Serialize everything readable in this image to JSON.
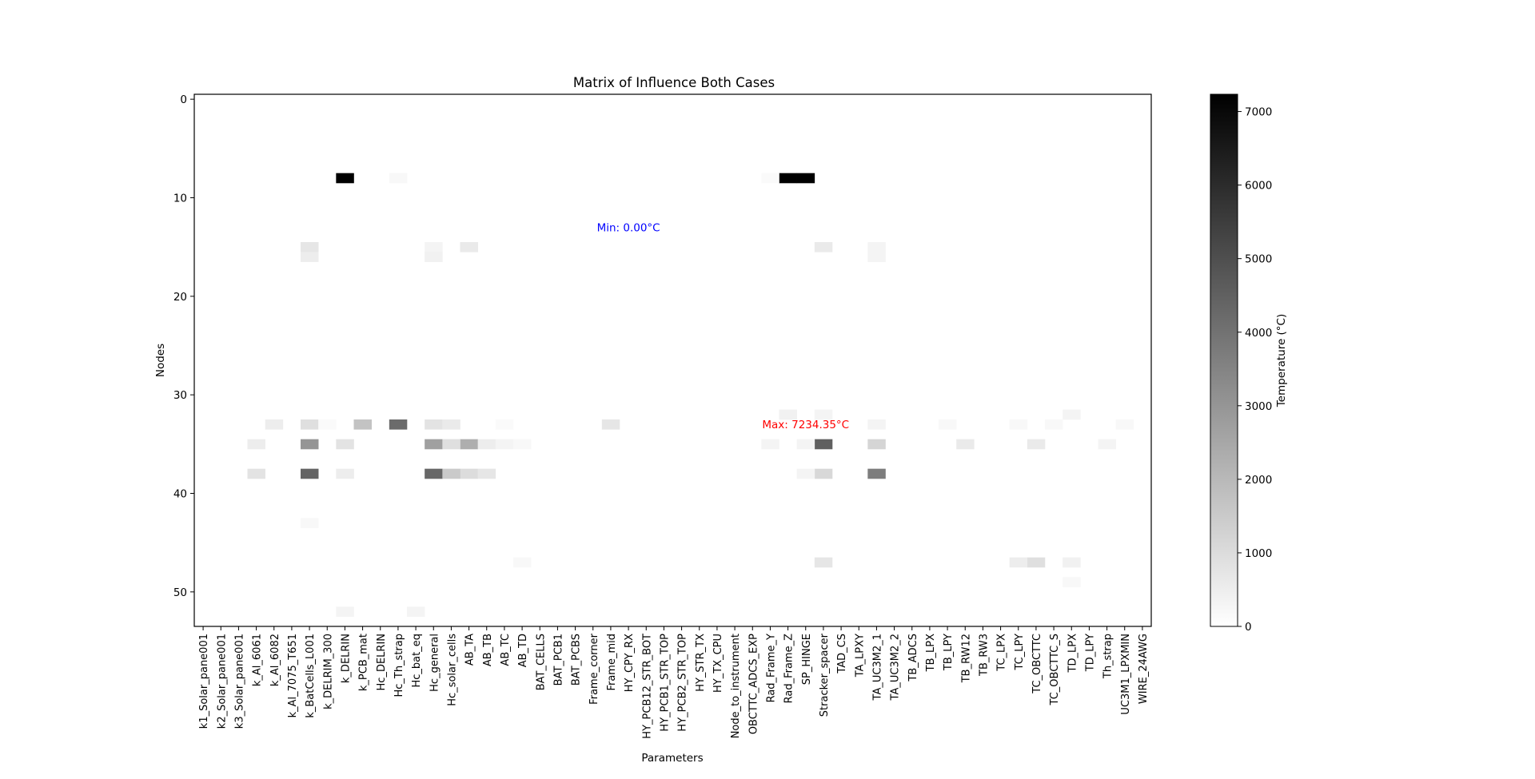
{
  "chart_data": {
    "type": "heatmap",
    "title": "Matrix of Influence Both Cases",
    "xlabel": "Parameters",
    "ylabel": "Nodes",
    "colorbar_label": "Temperature (°C)",
    "colormap": "Greys",
    "color_range": [
      0,
      7234.35
    ],
    "colorbar_ticks": [
      0,
      1000,
      2000,
      3000,
      4000,
      5000,
      6000,
      7000
    ],
    "y_range": [
      0,
      53
    ],
    "y_ticks": [
      0,
      10,
      20,
      30,
      40,
      50
    ],
    "x_tick_labels": [
      "k1_Solar_pane001",
      "k2_Solar_pane001",
      "k3_Solar_pane001",
      "k_Al_6061",
      "k_Al_6082",
      "k_Al_7075_T651",
      "k_BatCells_L001",
      "k_DELRIM_300",
      "k_DELRIN",
      "k_PCB_mat",
      "Hc_DELRIN",
      "Hc_Th_strap",
      "Hc_bat_eq",
      "Hc_general",
      "Hc_solar_cells",
      "AB_TA",
      "AB_TB",
      "AB_TC",
      "AB_TD",
      "BAT_CELLS",
      "BAT_PCB1",
      "BAT_PCBS",
      "Frame_corner",
      "Frame_mid",
      "HY_CPY_RX",
      "HY_PCB12_STR_BOT",
      "HY_PCB1_STR_TOP",
      "HY_PCB2_STR_TOP",
      "HY_STR_TX",
      "HY_TX_CPU",
      "Node_to_instrument",
      "OBCTTC_ADCS_EXP",
      "Rad_Frame_Y",
      "Rad_Frame_Z",
      "SP_HINGE",
      "Stracker_spacer",
      "TAD_CS",
      "TA_LPXY",
      "TA_UC3M2_1",
      "TA_UC3M2_2",
      "TB_ADCS",
      "TB_LPX",
      "TB_LPY",
      "TB_RW12",
      "TB_RW3",
      "TC_LPX",
      "TC_LPY",
      "TC_OBCTTC",
      "TC_OBCTTC_S",
      "TD_LPX",
      "TD_LPY",
      "Th_strap",
      "UC3M1_LPXMIN",
      "WIRE_24AWG"
    ],
    "cells": [
      [
        8,
        8,
        7234.35
      ],
      [
        33,
        8,
        7234.35
      ],
      [
        34,
        8,
        7234.35
      ],
      [
        11,
        33,
        4200
      ],
      [
        6,
        38,
        4400
      ],
      [
        13,
        38,
        4300
      ],
      [
        35,
        35,
        4500
      ],
      [
        38,
        38,
        3700
      ],
      [
        6,
        35,
        3000
      ],
      [
        13,
        35,
        2700
      ],
      [
        15,
        35,
        2300
      ],
      [
        9,
        33,
        1700
      ],
      [
        35,
        38,
        1100
      ],
      [
        38,
        35,
        1200
      ],
      [
        8,
        35,
        800
      ],
      [
        6,
        33,
        900
      ],
      [
        13,
        33,
        800
      ],
      [
        14,
        33,
        600
      ],
      [
        15,
        38,
        1000
      ],
      [
        14,
        35,
        900
      ],
      [
        14,
        38,
        1500
      ],
      [
        16,
        38,
        700
      ],
      [
        3,
        38,
        800
      ],
      [
        4,
        33,
        500
      ],
      [
        8,
        38,
        500
      ],
      [
        3,
        35,
        500
      ],
      [
        23,
        33,
        700
      ],
      [
        43,
        35,
        600
      ],
      [
        47,
        35,
        600
      ],
      [
        47,
        47,
        900
      ],
      [
        46,
        47,
        500
      ],
      [
        35,
        47,
        700
      ],
      [
        49,
        47,
        400
      ],
      [
        35,
        15,
        600
      ],
      [
        6,
        15,
        700
      ],
      [
        6,
        16,
        500
      ],
      [
        13,
        15,
        300
      ],
      [
        13,
        16,
        400
      ],
      [
        15,
        15,
        600
      ],
      [
        38,
        15,
        300
      ],
      [
        38,
        16,
        300
      ],
      [
        8,
        52,
        300
      ],
      [
        12,
        52,
        300
      ],
      [
        49,
        32,
        300
      ],
      [
        33,
        32,
        400
      ],
      [
        32,
        35,
        300
      ],
      [
        34,
        35,
        300
      ],
      [
        51,
        35,
        300
      ],
      [
        48,
        33,
        200
      ],
      [
        46,
        33,
        200
      ],
      [
        52,
        33,
        200
      ],
      [
        42,
        33,
        200
      ],
      [
        18,
        47,
        200
      ],
      [
        17,
        33,
        150
      ],
      [
        11,
        8,
        200
      ],
      [
        32,
        8,
        150
      ],
      [
        35,
        32,
        300
      ],
      [
        6,
        43,
        200
      ],
      [
        49,
        49,
        200
      ],
      [
        16,
        35,
        500
      ],
      [
        17,
        35,
        300
      ],
      [
        18,
        35,
        200
      ],
      [
        38,
        33,
        300
      ],
      [
        7,
        33,
        150
      ],
      [
        34,
        38,
        300
      ]
    ],
    "annotations": [
      {
        "text": "Min: 0.00°C",
        "color": "#0000ff",
        "x": 24,
        "y": 13
      },
      {
        "text": "Max: 7234.35°C",
        "color": "#ff0000",
        "x": 34,
        "y": 33
      }
    ]
  }
}
